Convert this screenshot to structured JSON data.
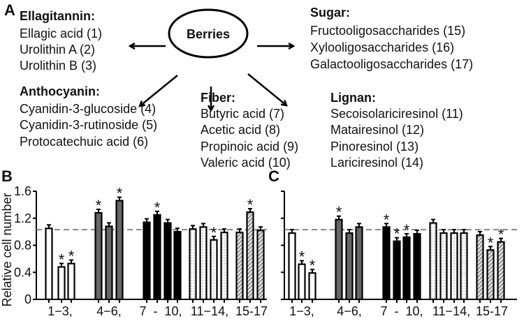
{
  "panel_labels": {
    "a": "A",
    "b": "B",
    "c": "C"
  },
  "diagram": {
    "center": "Berries",
    "groups": [
      {
        "title": "Ellagitannin:",
        "items": [
          "Ellagic acid (1)",
          "Urolithin A (2)",
          "Urolithin B (3)"
        ]
      },
      {
        "title": "Sugar:",
        "items": [
          "Fructooligosaccharides (15)",
          "Xylooligosaccharides (16)",
          "Galactooligosaccharides (17)"
        ]
      },
      {
        "title": "Anthocyanin:",
        "items": [
          "Cyanidin-3-glucoside (4)",
          "Cyanidin-3-rutinoside (5)",
          "Protocatechuic acid (6)"
        ]
      },
      {
        "title": "Fiber:",
        "items": [
          "Butyric acid (7)",
          "Acetic acid (8)",
          "Propinoic acid (9)",
          "Valeric acid (10)"
        ]
      },
      {
        "title": "Lignan:",
        "items": [
          "Secoisolariciresinol (11)",
          "Matairesinol (12)",
          "Pinoresinol (13)",
          "Lariciresinol (14)"
        ]
      }
    ]
  },
  "chart_data": [
    {
      "panel": "B",
      "type": "bar",
      "ylabel": "Relative cell number",
      "ylim": [
        0,
        1.6
      ],
      "yticks": [
        "0",
        "0.4",
        "0.8",
        "1.2",
        "1.6"
      ],
      "reference_line": 1.0,
      "group_labels": [
        "1−3,",
        "4−6,",
        "7  -  10,",
        "11−14,",
        "15-17"
      ],
      "categories": [
        "1",
        "2",
        "3",
        "4",
        "5",
        "6",
        "7",
        "8",
        "9",
        "10",
        "11",
        "12",
        "13",
        "14",
        "15",
        "16",
        "17"
      ],
      "values": [
        1.05,
        0.48,
        0.53,
        1.28,
        1.08,
        1.46,
        1.14,
        1.25,
        1.13,
        1.0,
        1.04,
        1.07,
        0.88,
        0.99,
        0.99,
        1.29,
        1.02
      ],
      "significant": [
        false,
        true,
        true,
        true,
        false,
        true,
        false,
        true,
        false,
        false,
        false,
        false,
        true,
        false,
        false,
        true,
        false
      ],
      "fills": [
        "white",
        "white",
        "white",
        "#666666",
        "#666666",
        "#666666",
        "#000000",
        "#000000",
        "#000000",
        "#000000",
        "dots",
        "dots",
        "dots",
        "dots",
        "hatch",
        "hatch",
        "hatch"
      ]
    },
    {
      "panel": "C",
      "type": "bar",
      "ylim": [
        0,
        1.6
      ],
      "reference_line": 1.0,
      "group_labels": [
        "1−3,",
        "4−6,",
        "7  -  10,",
        "11−14,",
        "15-17"
      ],
      "categories": [
        "1",
        "2",
        "3",
        "4",
        "5",
        "6",
        "7",
        "8",
        "9",
        "10",
        "11",
        "12",
        "13",
        "14",
        "15",
        "16",
        "17"
      ],
      "values": [
        0.98,
        0.52,
        0.39,
        1.18,
        0.98,
        1.07,
        1.07,
        0.86,
        0.92,
        0.97,
        1.13,
        0.98,
        0.98,
        0.98,
        0.95,
        0.73,
        0.85
      ],
      "significant": [
        false,
        true,
        true,
        true,
        false,
        false,
        true,
        true,
        true,
        false,
        false,
        false,
        false,
        false,
        false,
        true,
        true
      ],
      "fills": [
        "white",
        "white",
        "white",
        "#666666",
        "#666666",
        "#666666",
        "#000000",
        "#000000",
        "#000000",
        "#000000",
        "dots",
        "dots",
        "dots",
        "dots",
        "hatch",
        "hatch",
        "hatch"
      ]
    }
  ]
}
